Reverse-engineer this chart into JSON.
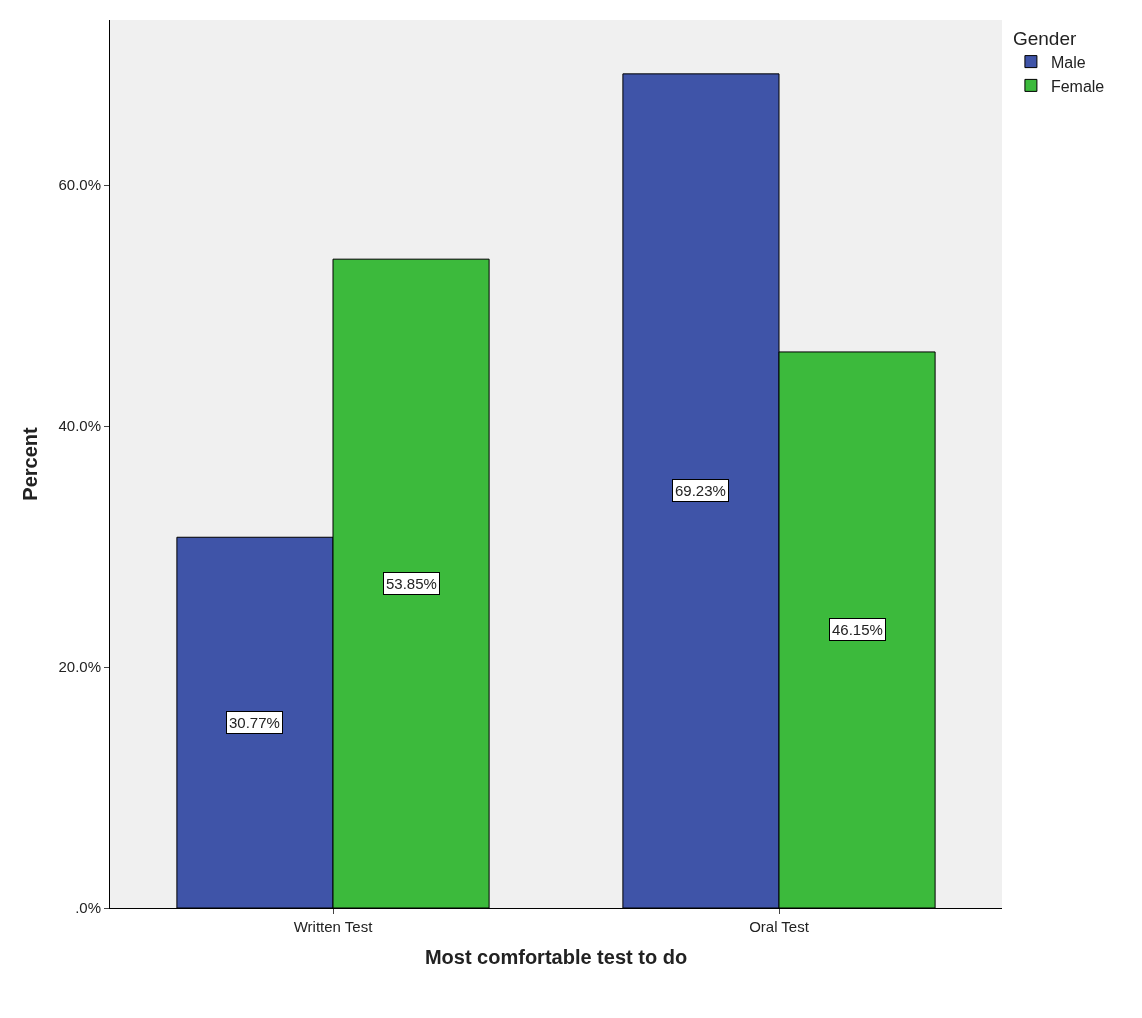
{
  "chart_data": {
    "type": "bar",
    "xlabel": "Most comfortable test to do",
    "ylabel": "Percent",
    "legend_title": "Gender",
    "categories": [
      "Written Test",
      "Oral Test"
    ],
    "series": [
      {
        "name": "Male",
        "color": "#3f54a8",
        "values": [
          30.77,
          69.23
        ],
        "value_labels": [
          "30.77%",
          "69.23%"
        ]
      },
      {
        "name": "Female",
        "color": "#3cba3c",
        "values": [
          53.85,
          46.15
        ],
        "value_labels": [
          "53.85%",
          "46.15%"
        ]
      }
    ],
    "ylim": [
      0,
      73.7
    ],
    "yticks": [
      {
        "value": 0,
        "label": ".0%"
      },
      {
        "value": 20,
        "label": "20.0%"
      },
      {
        "value": 40,
        "label": "40.0%"
      },
      {
        "value": 60,
        "label": "60.0%"
      }
    ],
    "grid": false,
    "legend": "top right"
  }
}
